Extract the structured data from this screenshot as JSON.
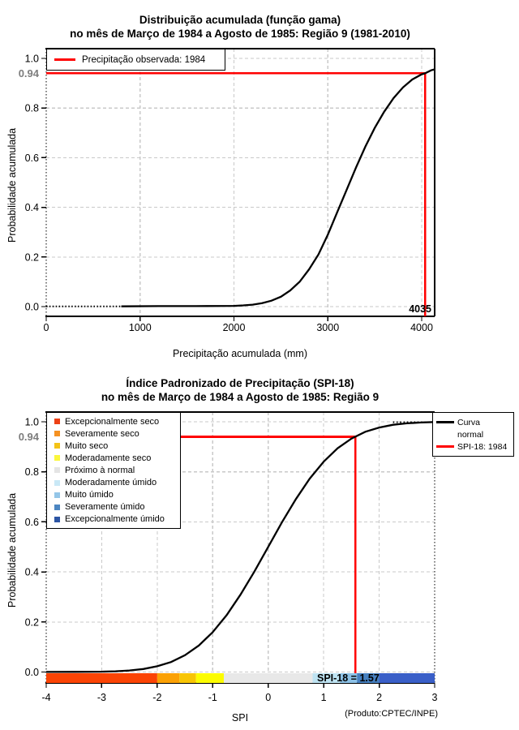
{
  "colors": {
    "red": "#FF0000",
    "curve": "#000000",
    "grid": "#C9C9C9",
    "highlight_gray": "#7D7D7D",
    "background": "#FFFFFF"
  },
  "top_chart": {
    "title_line1": "Distribuição acumulada (função gama)",
    "title_line2": "no mês de Março de 1984 a Agosto de 1985: Região 9 (1981-2010)",
    "ylabel": "Probabilidade acumulada",
    "xlabel": "Precipitação acumulada (mm)",
    "legend_label": "Precipitação observada: 1984",
    "highlight_label": "0.94",
    "annotation_label": "4035"
  },
  "bottom_chart": {
    "title_line1": "Índice Padronizado de Precipitação (SPI-18)",
    "title_line2": "no mês de Março de 1984 a Agosto de 1985: Região 9",
    "ylabel": "Probabilidade acumulada",
    "xlabel": "SPI",
    "highlight_label": "0.94",
    "bar_label": "SPI-18 = 1.57",
    "credit": "(Produto:CPTEC/INPE)",
    "legend_curve_line1": "Curva",
    "legend_curve_line2": "normal",
    "legend_spi_label": "SPI-18: 1984",
    "categories": [
      {
        "label": "Excepcionalmente seco",
        "color": "#ED4115"
      },
      {
        "label": "Severamente seco",
        "color": "#F59122"
      },
      {
        "label": "Muito seco",
        "color": "#F4C317"
      },
      {
        "label": "Moderadamente seco",
        "color": "#FBF73C"
      },
      {
        "label": "Próximo à normal",
        "color": "#E4E4E4"
      },
      {
        "label": "Moderadamente úmido",
        "color": "#C9E8F6"
      },
      {
        "label": "Muito úmido",
        "color": "#94C6E8"
      },
      {
        "label": "Severamente úmido",
        "color": "#4C86C2"
      },
      {
        "label": "Excepcionalmente úmido",
        "color": "#2C55A4"
      }
    ]
  },
  "chart_data": [
    {
      "type": "line",
      "title": "Distribuição acumulada (função gama) no mês de Março de 1984 a Agosto de 1985: Região 9 (1981-2010)",
      "xlabel": "Precipitação acumulada (mm)",
      "ylabel": "Probabilidade acumulada",
      "legend": [
        "Precipitação observada: 1984"
      ],
      "legend_position": "top-left",
      "grid": true,
      "x_range": [
        0,
        4138
      ],
      "y_range": [
        0,
        1
      ],
      "x_ticks": [
        {
          "v": 0,
          "label": "0"
        },
        {
          "v": 1000,
          "label": "1000"
        },
        {
          "v": 2000,
          "label": "2000"
        },
        {
          "v": 3000,
          "label": "3000"
        },
        {
          "v": 4000,
          "label": "4000"
        }
      ],
      "y_ticks": [
        {
          "v": 1.0,
          "label": "1.0"
        },
        {
          "v": 0.8,
          "label": "0.8"
        },
        {
          "v": 0.6,
          "label": "0.6"
        },
        {
          "v": 0.4,
          "label": "0.4"
        },
        {
          "v": 0.2,
          "label": "0.2"
        },
        {
          "v": 0.0,
          "label": "0.0"
        }
      ],
      "x": [
        0,
        400,
        800,
        1200,
        1600,
        2000,
        2100,
        2200,
        2300,
        2400,
        2500,
        2600,
        2700,
        2800,
        2900,
        3000,
        3100,
        3200,
        3300,
        3400,
        3500,
        3600,
        3700,
        3800,
        3900,
        4000,
        4035,
        4100,
        4138
      ],
      "y": [
        0.001,
        0.001,
        0.001,
        0.002,
        0.002,
        0.003,
        0.005,
        0.008,
        0.014,
        0.024,
        0.04,
        0.065,
        0.1,
        0.15,
        0.21,
        0.29,
        0.38,
        0.47,
        0.56,
        0.645,
        0.72,
        0.785,
        0.84,
        0.883,
        0.915,
        0.936,
        0.94,
        0.952,
        0.956
      ],
      "indicator": {
        "x": 4035,
        "y": 0.94,
        "label": "4035"
      }
    },
    {
      "type": "line",
      "title": "Índice Padronizado de Precipitação (SPI-18) no mês de Março de 1984 a Agosto de 1985: Região 9",
      "xlabel": "SPI",
      "ylabel": "Probabilidade acumulada",
      "legend": [
        "Curva normal",
        "SPI-18: 1984"
      ],
      "legend_position": "top-right",
      "grid": true,
      "x_range": [
        -4,
        3
      ],
      "y_range": [
        0,
        1
      ],
      "x_ticks": [
        {
          "v": -4,
          "label": "-4"
        },
        {
          "v": -3,
          "label": "-3"
        },
        {
          "v": -2,
          "label": "-2"
        },
        {
          "v": -1,
          "label": "-1"
        },
        {
          "v": 0,
          "label": "0"
        },
        {
          "v": 1,
          "label": "1"
        },
        {
          "v": 2,
          "label": "2"
        },
        {
          "v": 3,
          "label": "3"
        }
      ],
      "y_ticks": [
        {
          "v": 1.0,
          "label": "1.0"
        },
        {
          "v": 0.8,
          "label": "0.8"
        },
        {
          "v": 0.6,
          "label": "0.6"
        },
        {
          "v": 0.4,
          "label": "0.4"
        },
        {
          "v": 0.2,
          "label": "0.2"
        },
        {
          "v": 0.0,
          "label": "0.0"
        }
      ],
      "x": [
        -4,
        -3.5,
        -3,
        -2.75,
        -2.5,
        -2.25,
        -2,
        -1.75,
        -1.5,
        -1.25,
        -1,
        -0.75,
        -0.5,
        -0.25,
        0,
        0.25,
        0.5,
        0.75,
        1,
        1.25,
        1.5,
        1.75,
        2,
        2.25,
        2.5,
        2.75,
        3
      ],
      "y": [
        0.0002,
        0.0005,
        0.0013,
        0.003,
        0.006,
        0.012,
        0.023,
        0.04,
        0.067,
        0.106,
        0.159,
        0.227,
        0.309,
        0.401,
        0.5,
        0.599,
        0.691,
        0.773,
        0.841,
        0.894,
        0.933,
        0.96,
        0.977,
        0.988,
        0.994,
        0.997,
        0.999
      ],
      "indicator": {
        "x": 1.57,
        "y": 0.94,
        "label": "SPI-18 = 1.57"
      },
      "category_bar": [
        {
          "from": -4,
          "to": -2,
          "color": "#FB4405"
        },
        {
          "from": -2,
          "to": -1.6,
          "color": "#FBA105"
        },
        {
          "from": -1.6,
          "to": -1.3,
          "color": "#F8C503"
        },
        {
          "from": -1.3,
          "to": -0.8,
          "color": "#FCFC00"
        },
        {
          "from": -0.8,
          "to": 0.8,
          "color": "#E8E8E8"
        },
        {
          "from": 0.8,
          "to": 1.3,
          "color": "#BEE3F2"
        },
        {
          "from": 1.3,
          "to": 1.6,
          "color": "#8CC1E6"
        },
        {
          "from": 1.6,
          "to": 2,
          "color": "#4680C0"
        },
        {
          "from": 2,
          "to": 3,
          "color": "#3A5FC8"
        }
      ]
    }
  ]
}
